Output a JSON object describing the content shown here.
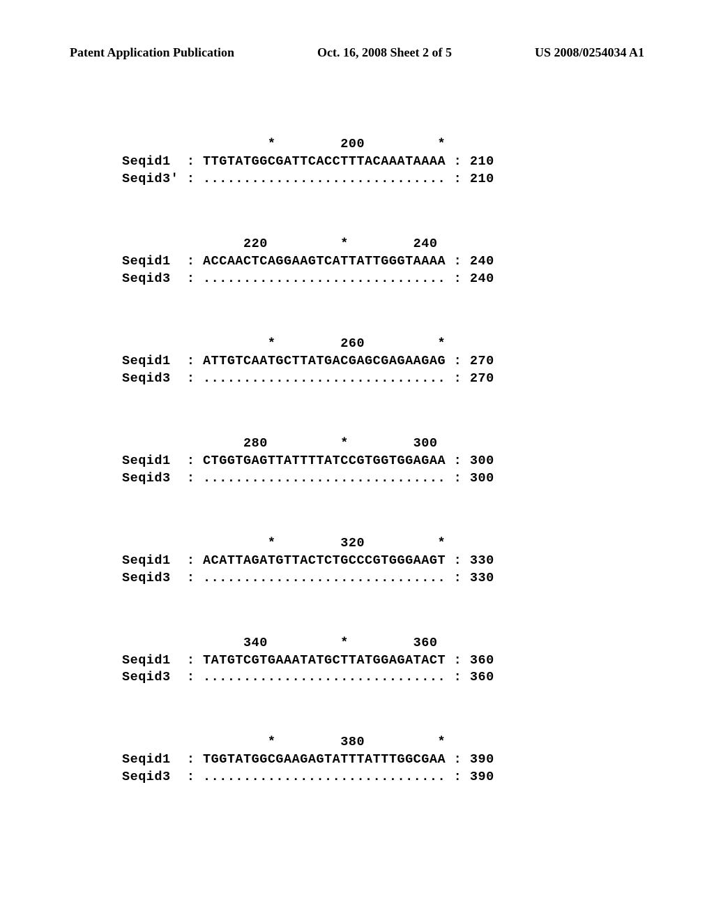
{
  "header": {
    "left": "Patent Application Publication",
    "center": "Oct. 16, 2008  Sheet 2 of 5",
    "right": "US 2008/0254034 A1"
  },
  "alignment": {
    "font_family": "Courier New",
    "font_size": 18.5,
    "font_weight": "bold",
    "text_color": "#000000",
    "background_color": "#ffffff",
    "blocks": [
      {
        "ruler": "                  *        200         *",
        "seq1": {
          "label": "Seqid1",
          "sequence": "TTGTATGGCGATTCACCTTTACAAATAAAA",
          "end": "210"
        },
        "seq3": {
          "label": "Seqid3'",
          "sequence": "..............................",
          "end": "210"
        }
      },
      {
        "ruler": "               220         *        240",
        "seq1": {
          "label": "Seqid1",
          "sequence": "ACCAACTCAGGAAGTCATTATTGGGTAAAA",
          "end": "240"
        },
        "seq3": {
          "label": "Seqid3",
          "sequence": "..............................",
          "end": "240"
        }
      },
      {
        "ruler": "                  *        260         *",
        "seq1": {
          "label": "Seqid1",
          "sequence": "ATTGTCAATGCTTATGACGAGCGAGAAGAG",
          "end": "270"
        },
        "seq3": {
          "label": "Seqid3",
          "sequence": "..............................",
          "end": "270"
        }
      },
      {
        "ruler": "               280         *        300",
        "seq1": {
          "label": "Seqid1",
          "sequence": "CTGGTGAGTTATTTTATCCGTGGTGGAGAA",
          "end": "300"
        },
        "seq3": {
          "label": "Seqid3",
          "sequence": "..............................",
          "end": "300"
        }
      },
      {
        "ruler": "                  *        320         *",
        "seq1": {
          "label": "Seqid1",
          "sequence": "ACATTAGATGTTACTCTGCCCGTGGGAAGT",
          "end": "330"
        },
        "seq3": {
          "label": "Seqid3",
          "sequence": "..............................",
          "end": "330"
        }
      },
      {
        "ruler": "               340         *        360",
        "seq1": {
          "label": "Seqid1",
          "sequence": "TATGTCGTGAAATATGCTTATGGAGATACT",
          "end": "360"
        },
        "seq3": {
          "label": "Seqid3",
          "sequence": "..............................",
          "end": "360"
        }
      },
      {
        "ruler": "                  *        380         *",
        "seq1": {
          "label": "Seqid1",
          "sequence": "TGGTATGGCGAAGAGTATTTATTTGGCGAA",
          "end": "390"
        },
        "seq3": {
          "label": "Seqid3",
          "sequence": "..............................",
          "end": "390"
        }
      }
    ]
  }
}
